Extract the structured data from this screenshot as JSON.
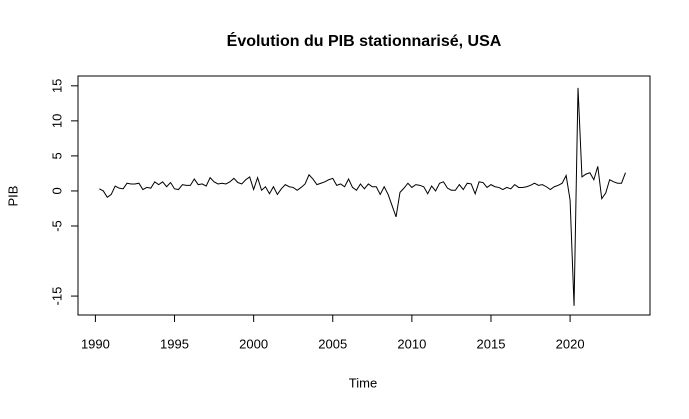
{
  "chart_data": {
    "type": "line",
    "title": "Évolution du PIB stationnarisé, USA",
    "xlabel": "Time",
    "ylabel": "PIB",
    "xlim": [
      1988.9,
      2025.05
    ],
    "ylim": [
      -17.7,
      16.4
    ],
    "xticks": [
      1990,
      1995,
      2000,
      2005,
      2010,
      2015,
      2020
    ],
    "yticks": [
      -15,
      -5,
      0,
      5,
      10,
      15
    ],
    "color": "#000000",
    "x": [
      1990.25,
      1990.5,
      1990.75,
      1991,
      1991.25,
      1991.5,
      1991.75,
      1992,
      1992.25,
      1992.5,
      1992.75,
      1993,
      1993.25,
      1993.5,
      1993.75,
      1994,
      1994.25,
      1994.5,
      1994.75,
      1995,
      1995.25,
      1995.5,
      1995.75,
      1996,
      1996.25,
      1996.5,
      1996.75,
      1997,
      1997.25,
      1997.5,
      1997.75,
      1998,
      1998.25,
      1998.5,
      1998.75,
      1999,
      1999.25,
      1999.5,
      1999.75,
      2000,
      2000.25,
      2000.5,
      2000.75,
      2001,
      2001.25,
      2001.5,
      2001.75,
      2002,
      2002.25,
      2002.5,
      2002.75,
      2003,
      2003.25,
      2003.5,
      2003.75,
      2004,
      2004.25,
      2004.5,
      2004.75,
      2005,
      2005.25,
      2005.5,
      2005.75,
      2006,
      2006.25,
      2006.5,
      2006.75,
      2007,
      2007.25,
      2007.5,
      2007.75,
      2008,
      2008.25,
      2008.5,
      2008.75,
      2009,
      2009.25,
      2009.5,
      2009.75,
      2010,
      2010.25,
      2010.5,
      2010.75,
      2011,
      2011.25,
      2011.5,
      2011.75,
      2012,
      2012.25,
      2012.5,
      2012.75,
      2013,
      2013.25,
      2013.5,
      2013.75,
      2014,
      2014.25,
      2014.5,
      2014.75,
      2015,
      2015.25,
      2015.5,
      2015.75,
      2016,
      2016.25,
      2016.5,
      2016.75,
      2017,
      2017.25,
      2017.5,
      2017.75,
      2018,
      2018.25,
      2018.5,
      2018.75,
      2019,
      2019.25,
      2019.5,
      2019.75,
      2020,
      2020.25,
      2020.5,
      2020.75,
      2021,
      2021.25,
      2021.5,
      2021.75,
      2022,
      2022.25,
      2022.5,
      2022.75,
      2023,
      2023.25,
      2023.5
    ],
    "values": [
      0.3,
      0.0,
      -0.9,
      -0.5,
      0.7,
      0.4,
      0.3,
      1.1,
      1.0,
      1.0,
      1.1,
      0.2,
      0.5,
      0.4,
      1.3,
      0.9,
      1.3,
      0.6,
      1.2,
      0.3,
      0.2,
      0.9,
      0.8,
      0.8,
      1.7,
      0.9,
      1.0,
      0.7,
      1.9,
      1.3,
      1.0,
      1.1,
      1.0,
      1.3,
      1.8,
      1.2,
      1.0,
      1.6,
      2.0,
      0.2,
      1.9,
      0.1,
      0.6,
      -0.4,
      0.6,
      -0.5,
      0.3,
      0.9,
      0.6,
      0.5,
      0.1,
      0.5,
      1.0,
      2.3,
      1.7,
      0.9,
      1.1,
      1.3,
      1.6,
      1.8,
      0.8,
      1.0,
      0.6,
      1.7,
      0.5,
      0.1,
      1.0,
      0.3,
      1.0,
      0.6,
      0.6,
      -0.5,
      0.6,
      -0.5,
      -2.1,
      -3.7,
      -0.2,
      0.4,
      1.1,
      0.5,
      0.9,
      0.8,
      0.6,
      -0.4,
      0.7,
      0.0,
      1.1,
      1.3,
      0.4,
      0.1,
      0.1,
      0.9,
      0.2,
      1.1,
      1.0,
      -0.4,
      1.3,
      1.2,
      0.5,
      0.9,
      0.6,
      0.5,
      0.2,
      0.5,
      0.3,
      0.9,
      0.5,
      0.5,
      0.6,
      0.8,
      1.1,
      0.8,
      0.9,
      0.6,
      0.2,
      0.6,
      0.8,
      1.1,
      2.2,
      -1.3,
      -16.4,
      14.7,
      2.0,
      2.4,
      2.6,
      1.6,
      3.5,
      -1.1,
      -0.3,
      1.6,
      1.3,
      1.1,
      1.1,
      2.6
    ]
  }
}
